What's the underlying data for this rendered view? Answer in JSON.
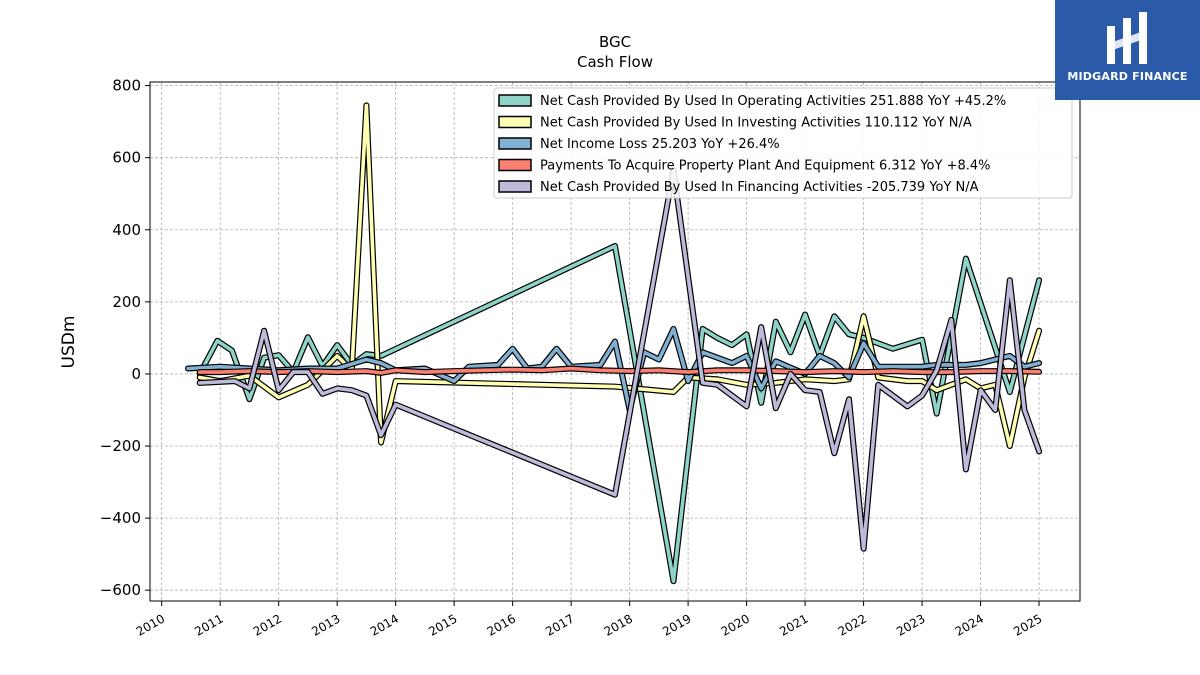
{
  "chart_data": {
    "type": "line",
    "title": "BGC",
    "subtitle": "Cash Flow",
    "ylabel": "USDm",
    "xlabel": "",
    "ylim": [
      -630,
      810
    ],
    "yticks": [
      800,
      600,
      400,
      200,
      0,
      -200,
      -400,
      -600
    ],
    "ytick_labels": [
      "800",
      "600",
      "400",
      "200",
      "0",
      "−200",
      "−400",
      "−600"
    ],
    "xlim": [
      2009.8,
      2025.7
    ],
    "xticks": [
      2010,
      2011,
      2012,
      2013,
      2014,
      2015,
      2016,
      2017,
      2018,
      2019,
      2020,
      2021,
      2022,
      2023,
      2024,
      2025
    ],
    "xtick_labels": [
      "2010",
      "2011",
      "2012",
      "2013",
      "2014",
      "2015",
      "2016",
      "2017",
      "2018",
      "2019",
      "2020",
      "2021",
      "2022",
      "2023",
      "2024",
      "2025"
    ],
    "grid": true,
    "legend_position": "top-right",
    "series": [
      {
        "name": "Net Cash Provided By Used In Operating Activities  251.888 YoY +45.2%",
        "color": "#8dd3c7",
        "points": [
          [
            2010.65,
            0
          ],
          [
            2010.95,
            92
          ],
          [
            2011.2,
            65
          ],
          [
            2011.5,
            -70
          ],
          [
            2011.75,
            45
          ],
          [
            2012.0,
            52
          ],
          [
            2012.25,
            5
          ],
          [
            2012.5,
            102
          ],
          [
            2012.75,
            22
          ],
          [
            2013.0,
            80
          ],
          [
            2013.25,
            25
          ],
          [
            2013.5,
            55
          ],
          [
            2013.75,
            50
          ],
          [
            2017.75,
            355
          ],
          [
            2018.75,
            -575
          ],
          [
            2019.25,
            125
          ],
          [
            2019.5,
            100
          ],
          [
            2019.75,
            80
          ],
          [
            2020.0,
            110
          ],
          [
            2020.25,
            -80
          ],
          [
            2020.5,
            145
          ],
          [
            2020.75,
            60
          ],
          [
            2021.0,
            165
          ],
          [
            2021.25,
            50
          ],
          [
            2021.5,
            160
          ],
          [
            2021.75,
            110
          ],
          [
            2022.0,
            100
          ],
          [
            2022.5,
            70
          ],
          [
            2023.0,
            95
          ],
          [
            2023.25,
            -110
          ],
          [
            2023.75,
            320
          ],
          [
            2024.5,
            -50
          ],
          [
            2025.0,
            260
          ]
        ]
      },
      {
        "name": "Net Cash Provided By Used In Investing Activities  110.112 YoY N/A",
        "color": "#ffffb3",
        "points": [
          [
            2010.65,
            -10
          ],
          [
            2011.0,
            -20
          ],
          [
            2011.5,
            -5
          ],
          [
            2012.0,
            -65
          ],
          [
            2012.5,
            -30
          ],
          [
            2013.0,
            50
          ],
          [
            2013.25,
            10
          ],
          [
            2013.5,
            745
          ],
          [
            2013.75,
            -190
          ],
          [
            2014.0,
            -20
          ],
          [
            2017.75,
            -35
          ],
          [
            2018.75,
            -50
          ],
          [
            2019.0,
            -10
          ],
          [
            2019.5,
            -15
          ],
          [
            2020.0,
            -30
          ],
          [
            2020.5,
            -25
          ],
          [
            2021.0,
            -15
          ],
          [
            2021.5,
            -20
          ],
          [
            2021.75,
            -15
          ],
          [
            2022.0,
            160
          ],
          [
            2022.25,
            -10
          ],
          [
            2022.75,
            -20
          ],
          [
            2023.0,
            -20
          ],
          [
            2023.25,
            -45
          ],
          [
            2023.75,
            -15
          ],
          [
            2024.0,
            -40
          ],
          [
            2024.25,
            -30
          ],
          [
            2024.5,
            -200
          ],
          [
            2024.75,
            -10
          ],
          [
            2025.0,
            120
          ]
        ]
      },
      {
        "name": "Net Income Loss  25.203 YoY +26.4%",
        "color": "#80b1d3",
        "points": [
          [
            2010.45,
            15
          ],
          [
            2011.0,
            20
          ],
          [
            2011.5,
            15
          ],
          [
            2012.0,
            10
          ],
          [
            2012.5,
            15
          ],
          [
            2013.0,
            15
          ],
          [
            2013.5,
            40
          ],
          [
            2013.75,
            30
          ],
          [
            2014.0,
            10
          ],
          [
            2014.5,
            15
          ],
          [
            2015.0,
            -20
          ],
          [
            2015.25,
            20
          ],
          [
            2015.75,
            25
          ],
          [
            2016.0,
            70
          ],
          [
            2016.25,
            15
          ],
          [
            2016.5,
            20
          ],
          [
            2016.75,
            70
          ],
          [
            2017.0,
            20
          ],
          [
            2017.5,
            25
          ],
          [
            2017.75,
            90
          ],
          [
            2018.0,
            -100
          ],
          [
            2018.25,
            60
          ],
          [
            2018.5,
            40
          ],
          [
            2018.75,
            125
          ],
          [
            2019.0,
            -20
          ],
          [
            2019.25,
            60
          ],
          [
            2019.75,
            30
          ],
          [
            2020.0,
            50
          ],
          [
            2020.25,
            -40
          ],
          [
            2020.5,
            35
          ],
          [
            2021.0,
            0
          ],
          [
            2021.25,
            50
          ],
          [
            2021.5,
            30
          ],
          [
            2021.75,
            -10
          ],
          [
            2022.0,
            85
          ],
          [
            2022.25,
            20
          ],
          [
            2023.0,
            20
          ],
          [
            2023.25,
            25
          ],
          [
            2023.75,
            25
          ],
          [
            2024.0,
            30
          ],
          [
            2024.5,
            50
          ],
          [
            2024.75,
            20
          ],
          [
            2025.0,
            30
          ]
        ]
      },
      {
        "name": "Payments To Acquire Property Plant And Equipment  6.312 YoY +8.4%",
        "color": "#fb8072",
        "points": [
          [
            2010.65,
            5
          ],
          [
            2011.0,
            5
          ],
          [
            2011.5,
            8
          ],
          [
            2012.0,
            5
          ],
          [
            2012.5,
            8
          ],
          [
            2013.0,
            5
          ],
          [
            2013.5,
            8
          ],
          [
            2013.75,
            3
          ],
          [
            2014.0,
            10
          ],
          [
            2014.5,
            5
          ],
          [
            2015.0,
            8
          ],
          [
            2015.5,
            10
          ],
          [
            2016.0,
            12
          ],
          [
            2016.5,
            10
          ],
          [
            2017.0,
            15
          ],
          [
            2017.5,
            10
          ],
          [
            2018.0,
            8
          ],
          [
            2018.5,
            10
          ],
          [
            2019.0,
            5
          ],
          [
            2019.5,
            10
          ],
          [
            2020.0,
            10
          ],
          [
            2020.5,
            8
          ],
          [
            2021.0,
            5
          ],
          [
            2021.5,
            8
          ],
          [
            2022.0,
            5
          ],
          [
            2022.5,
            8
          ],
          [
            2023.0,
            5
          ],
          [
            2023.5,
            5
          ],
          [
            2024.0,
            8
          ],
          [
            2024.5,
            8
          ],
          [
            2025.0,
            6
          ]
        ]
      },
      {
        "name": "Net Cash Provided By Used In Financing Activities  -205.739 YoY N/A",
        "color": "#bebada",
        "points": [
          [
            2010.65,
            -25
          ],
          [
            2011.25,
            -20
          ],
          [
            2011.5,
            -40
          ],
          [
            2011.75,
            120
          ],
          [
            2012.0,
            -45
          ],
          [
            2012.25,
            5
          ],
          [
            2012.5,
            5
          ],
          [
            2012.75,
            -55
          ],
          [
            2013.0,
            -40
          ],
          [
            2013.25,
            -45
          ],
          [
            2013.5,
            -60
          ],
          [
            2013.75,
            -170
          ],
          [
            2014.0,
            -85
          ],
          [
            2017.75,
            -335
          ],
          [
            2018.75,
            565
          ],
          [
            2019.25,
            -25
          ],
          [
            2019.5,
            -30
          ],
          [
            2020.0,
            -90
          ],
          [
            2020.25,
            130
          ],
          [
            2020.5,
            -95
          ],
          [
            2020.75,
            0
          ],
          [
            2021.0,
            -45
          ],
          [
            2021.25,
            -50
          ],
          [
            2021.5,
            -220
          ],
          [
            2021.75,
            -70
          ],
          [
            2022.0,
            -485
          ],
          [
            2022.25,
            -30
          ],
          [
            2022.75,
            -90
          ],
          [
            2023.0,
            -60
          ],
          [
            2023.25,
            10
          ],
          [
            2023.5,
            150
          ],
          [
            2023.75,
            -265
          ],
          [
            2024.0,
            -45
          ],
          [
            2024.25,
            -100
          ],
          [
            2024.5,
            260
          ],
          [
            2024.75,
            -100
          ],
          [
            2025.0,
            -215
          ]
        ]
      }
    ]
  },
  "logo": {
    "text": "MIDGARD FINANCE",
    "icon": "midgard-logo-icon"
  }
}
